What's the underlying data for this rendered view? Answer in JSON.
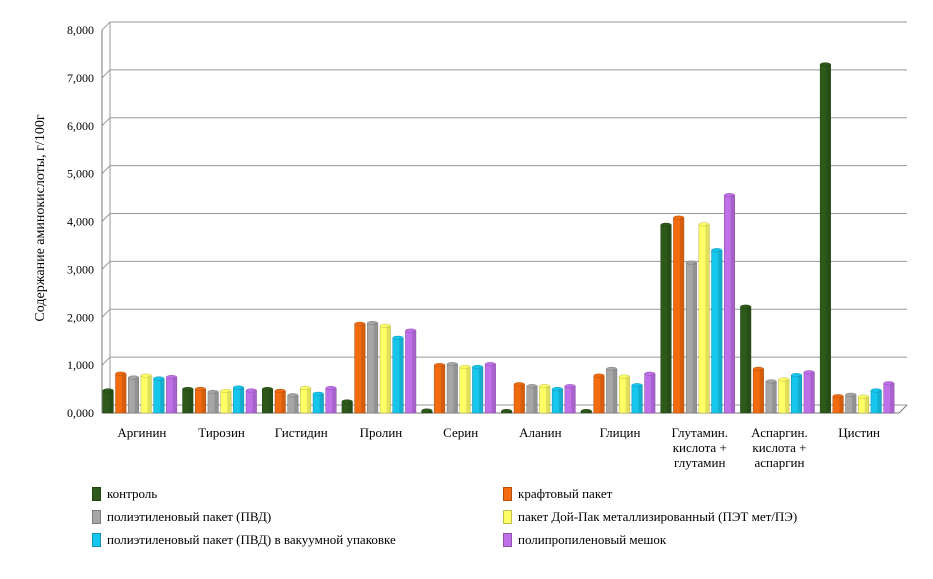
{
  "chart_data": {
    "type": "bar",
    "title": "",
    "xlabel": "",
    "ylabel": "Содержание аминокислоты, г/100г",
    "ylim": [
      0,
      8
    ],
    "yticks": [
      "0,000",
      "1,000",
      "2,000",
      "3,000",
      "4,000",
      "5,000",
      "6,000",
      "7,000",
      "8,000"
    ],
    "grid": true,
    "legend_position": "bottom",
    "categories": [
      [
        "Аргинин"
      ],
      [
        "Тирозин"
      ],
      [
        "Гистидин"
      ],
      [
        "Пролин"
      ],
      [
        "Серин"
      ],
      [
        "Аланин"
      ],
      [
        "Глицин"
      ],
      [
        "Глутамин.",
        "кислота +",
        "глутамин"
      ],
      [
        "Аспаргин.",
        "кислота +",
        "аспаргин"
      ],
      [
        "Цистин"
      ]
    ],
    "series": [
      {
        "name": "контроль",
        "color": "#2d5a1b",
        "values": [
          0.47,
          0.5,
          0.5,
          0.24,
          0.05,
          0.04,
          0.04,
          3.93,
          2.22,
          7.28
        ]
      },
      {
        "name": "крафтовый пакет",
        "color": "#f26b0f",
        "values": [
          0.82,
          0.5,
          0.46,
          1.86,
          1.0,
          0.6,
          0.78,
          4.08,
          0.92,
          0.35
        ]
      },
      {
        "name": "полиэтиленовый пакет (ПВД)",
        "color": "#a6a6a6",
        "values": [
          0.74,
          0.44,
          0.37,
          1.88,
          1.02,
          0.56,
          0.92,
          3.14,
          0.66,
          0.38
        ]
      },
      {
        "name": "пакет Дой-Пак металлизированный (ПЭТ мет/ПЭ)",
        "color": "#ffff66",
        "values": [
          0.78,
          0.46,
          0.52,
          1.82,
          0.96,
          0.56,
          0.76,
          3.94,
          0.7,
          0.34
        ]
      },
      {
        "name": "полиэтиленовый пакет (ПВД) в вакуумной упаковке",
        "color": "#17c6ec",
        "values": [
          0.72,
          0.53,
          0.4,
          1.57,
          0.96,
          0.5,
          0.58,
          3.4,
          0.79,
          0.47
        ]
      },
      {
        "name": "полипропиленовый мешок",
        "color": "#bf6fe8",
        "values": [
          0.75,
          0.47,
          0.52,
          1.72,
          1.02,
          0.56,
          0.82,
          4.55,
          0.85,
          0.62
        ]
      }
    ]
  }
}
